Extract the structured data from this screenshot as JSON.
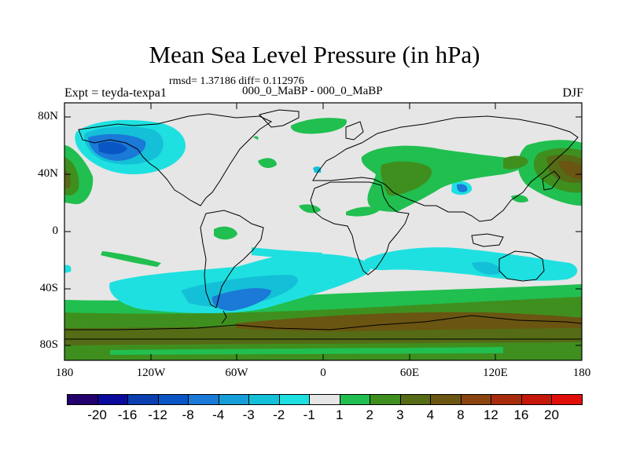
{
  "title": "Mean Sea Level Pressure (in hPa)",
  "stats_line": "rmsd= 1.37186 diff= 0.112976",
  "left_subtitle": "Expt = teyda-texpa1",
  "center_subtitle": "000_0_MaBP - 000_0_MaBP",
  "right_subtitle": "DJF",
  "map": {
    "projection": "cylindrical equidistant",
    "lon_range": [
      -180,
      180
    ],
    "lat_range": [
      -90,
      90
    ],
    "lat_ticks": [
      "80N",
      "40N",
      "0",
      "40S",
      "80S"
    ],
    "lon_ticks": [
      "180",
      "120W",
      "60W",
      "0",
      "60E",
      "120E",
      "180"
    ],
    "background_class": "-1 to 1"
  },
  "colorbar": {
    "colors": [
      "#24006e",
      "#0a0a9c",
      "#0b3fb0",
      "#0a55c4",
      "#1b79d8",
      "#169ed8",
      "#14c0d8",
      "#1fe0e0",
      "#e6e6e6",
      "#21bf50",
      "#3f8f1f",
      "#556b16",
      "#6a5512",
      "#8a440f",
      "#a82c0b",
      "#c5170a",
      "#e10f0a"
    ],
    "labels": [
      "-20",
      "-16",
      "-12",
      "-8",
      "-4",
      "-3",
      "-2",
      "-1",
      "1",
      "2",
      "3",
      "4",
      "8",
      "12",
      "16",
      "20"
    ]
  }
}
